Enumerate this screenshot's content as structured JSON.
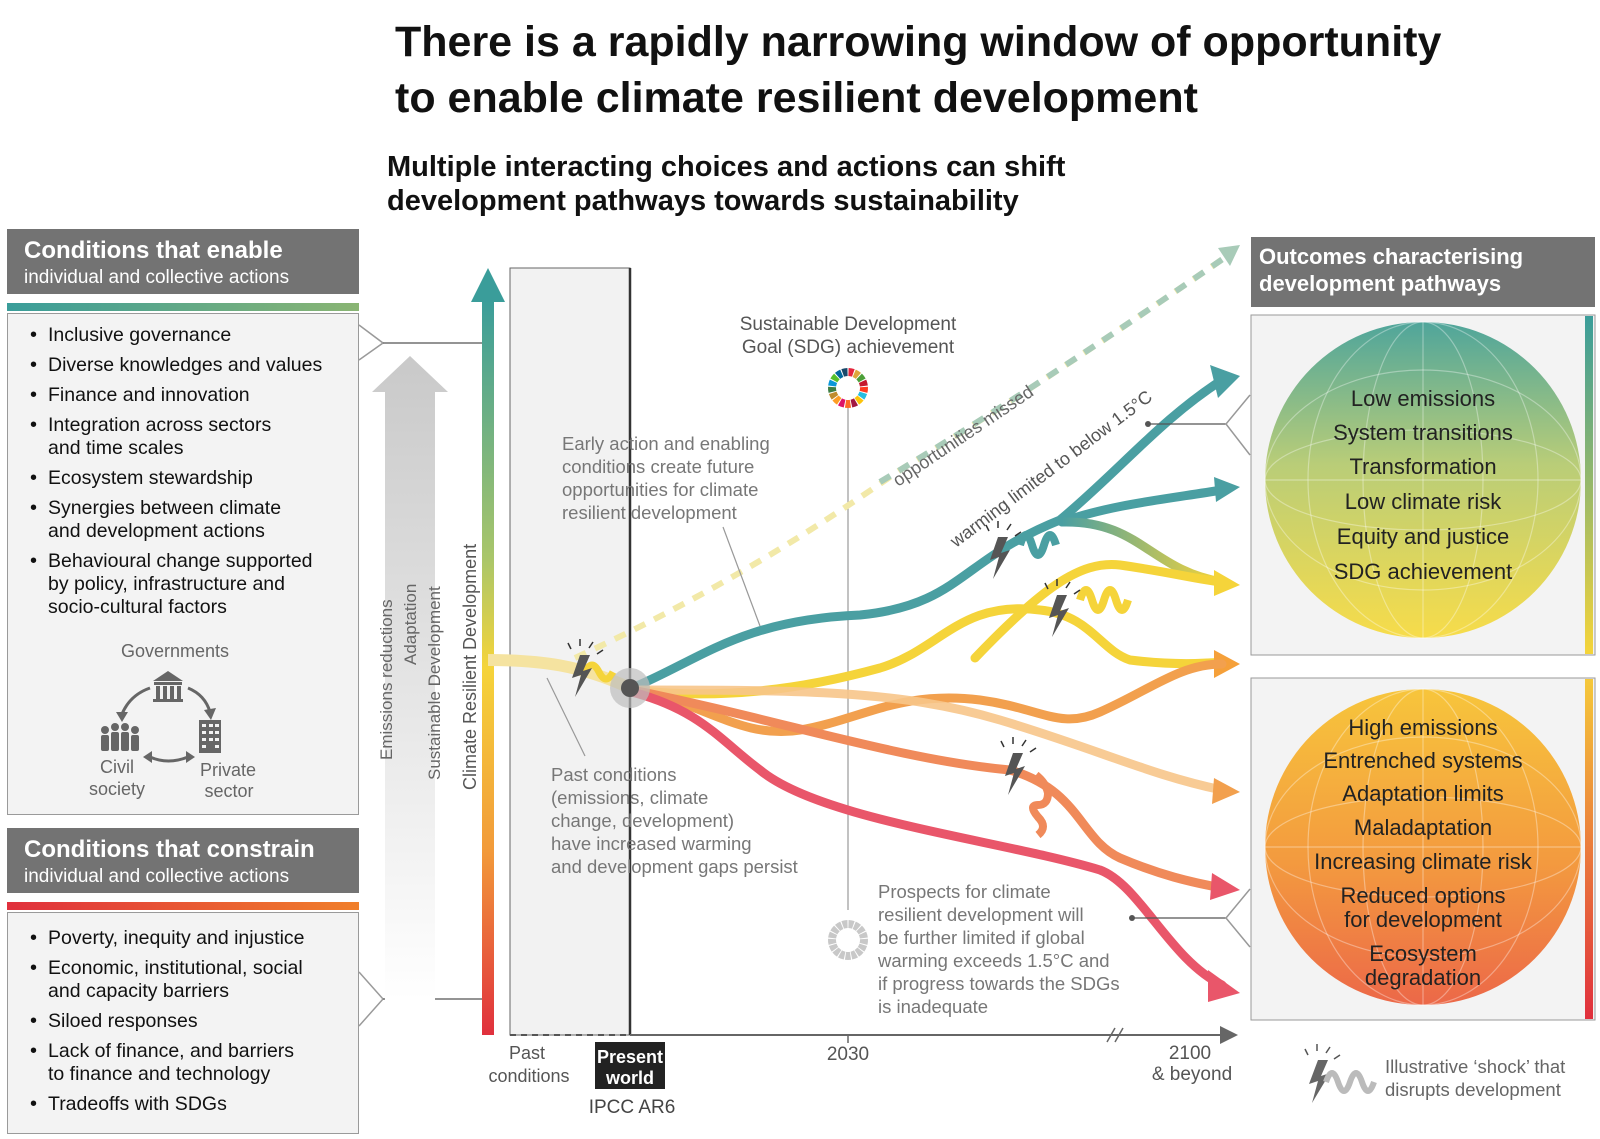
{
  "title_line1": "There is a rapidly narrowing window of opportunity",
  "title_line2": "to enable climate resilient development",
  "subtitle_line1": "Multiple interacting choices and actions can shift",
  "subtitle_line2": "development pathways towards sustainability",
  "enable": {
    "heading": "Conditions that enable",
    "subheading": "individual and collective actions",
    "items": [
      "Inclusive governance",
      "Diverse knowledges and values",
      "Finance and innovation",
      "Integration across sectors|and time scales",
      "Ecosystem stewardship",
      "Synergies between climate|and development actions",
      "Behavioural change supported|by policy, infrastructure and|socio-cultural factors"
    ],
    "actors": {
      "governments": "Governments",
      "civil_1": "Civil",
      "civil_2": "society",
      "private_1": "Private",
      "private_2": "sector"
    }
  },
  "constrain": {
    "heading": "Conditions that constrain",
    "subheading": "individual and collective actions",
    "items": [
      "Poverty, inequity and injustice",
      "Economic, institutional, social|and capacity barriers",
      "Siloed responses",
      "Lack of finance, and barriers|to finance and technology",
      "Tradeoffs with SDGs"
    ]
  },
  "axis": {
    "y_label": "Climate Resilient Development",
    "arrow_labels": [
      "Emissions reductions",
      "Adaptation",
      "Sustainable Development"
    ],
    "x_labels": {
      "past_1": "Past",
      "past_2": "conditions",
      "present_1": "Present",
      "present_2": "world",
      "ipcc": "IPCC AR6",
      "y2030": "2030",
      "y2100_1": "2100",
      "y2100_2": "& beyond"
    }
  },
  "annotations": {
    "sdg_1": "Sustainable Development",
    "sdg_2": "Goal (SDG) achievement",
    "opportunities": "opportunities missed",
    "warming": "warming limited to below 1.5°C",
    "early": [
      "Early action and enabling",
      "conditions create future",
      "opportunities for climate",
      "resilient development"
    ],
    "past": [
      "Past conditions",
      "(emissions, climate",
      "change, development)",
      "have increased warming",
      "and development gaps persist"
    ],
    "prospects": [
      "Prospects for climate",
      "resilient development will",
      "be further limited if global",
      "warming exceeds 1.5°C and",
      "if progress towards the SDGs",
      "is inadequate"
    ]
  },
  "outcomes": {
    "heading_1": "Outcomes characterising",
    "heading_2": "development pathways",
    "positive": [
      "Low emissions",
      "System transitions",
      "Transformation",
      "Low climate risk",
      "Equity and justice",
      "SDG achievement"
    ],
    "negative": [
      "High emissions",
      "Entrenched systems",
      "Adaptation limits",
      "Maladaptation",
      "Increasing climate risk",
      "Reduced options",
      "for development",
      "Ecosystem",
      "degradation"
    ]
  },
  "legend": {
    "line1": "Illustrative ‘shock’ that",
    "line2": "disrupts development"
  },
  "colors": {
    "teal": "#4a9fa2",
    "yellow": "#f5d43a",
    "orange": "#f2a04e",
    "red": "#e9566a",
    "grey": "#737373"
  },
  "icons": [
    "government-building-icon",
    "people-icon",
    "office-building-icon",
    "lightning-shock-icon",
    "sdg-wheel-icon",
    "cycle-arrows-icon"
  ]
}
